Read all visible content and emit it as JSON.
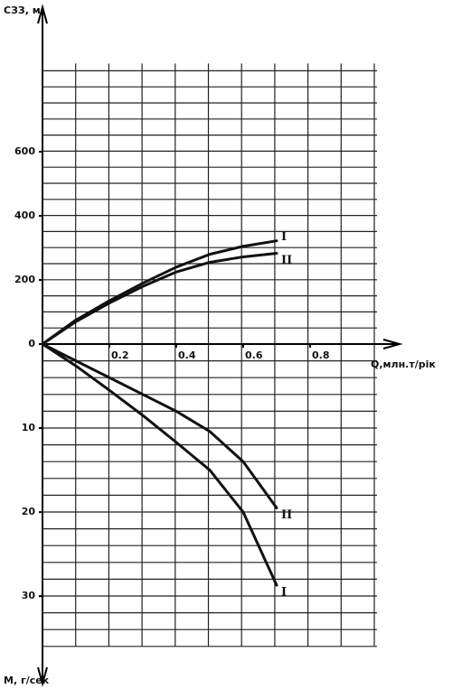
{
  "chart_data": [
    {
      "type": "line",
      "ylabel": "СЗЗ, м",
      "xlabel": "Q,млн.т/рік",
      "x": [
        0,
        0.1,
        0.2,
        0.3,
        0.4,
        0.5,
        0.6,
        0.7
      ],
      "xlim": [
        0,
        1.0
      ],
      "xticks": [
        0.2,
        0.4,
        0.6,
        0.8
      ],
      "ylim": [
        0,
        875
      ],
      "yticks": [
        0,
        200,
        400,
        600
      ],
      "y_inverted": false,
      "grid": true,
      "series": [
        {
          "name": "I",
          "color": "#111111",
          "values": [
            0,
            75,
            135,
            190,
            240,
            280,
            305,
            322
          ]
        },
        {
          "name": "II",
          "color": "#111111",
          "values": [
            0,
            70,
            128,
            180,
            225,
            255,
            272,
            283
          ]
        }
      ]
    },
    {
      "type": "line",
      "ylabel": "М, г/сек",
      "x": [
        0,
        0.1,
        0.2,
        0.3,
        0.4,
        0.5,
        0.6,
        0.7
      ],
      "xlim": [
        0,
        1.0
      ],
      "ylim": [
        0,
        36
      ],
      "yticks": [
        10,
        20,
        30
      ],
      "y_inverted": true,
      "grid": true,
      "series": [
        {
          "name": "II",
          "color": "#111111",
          "values": [
            0,
            2,
            4,
            6,
            8,
            10.4,
            14,
            19.5
          ]
        },
        {
          "name": "I",
          "color": "#111111",
          "values": [
            0,
            2.6,
            5.5,
            8.5,
            11.7,
            15,
            20,
            28.7
          ]
        }
      ]
    }
  ]
}
